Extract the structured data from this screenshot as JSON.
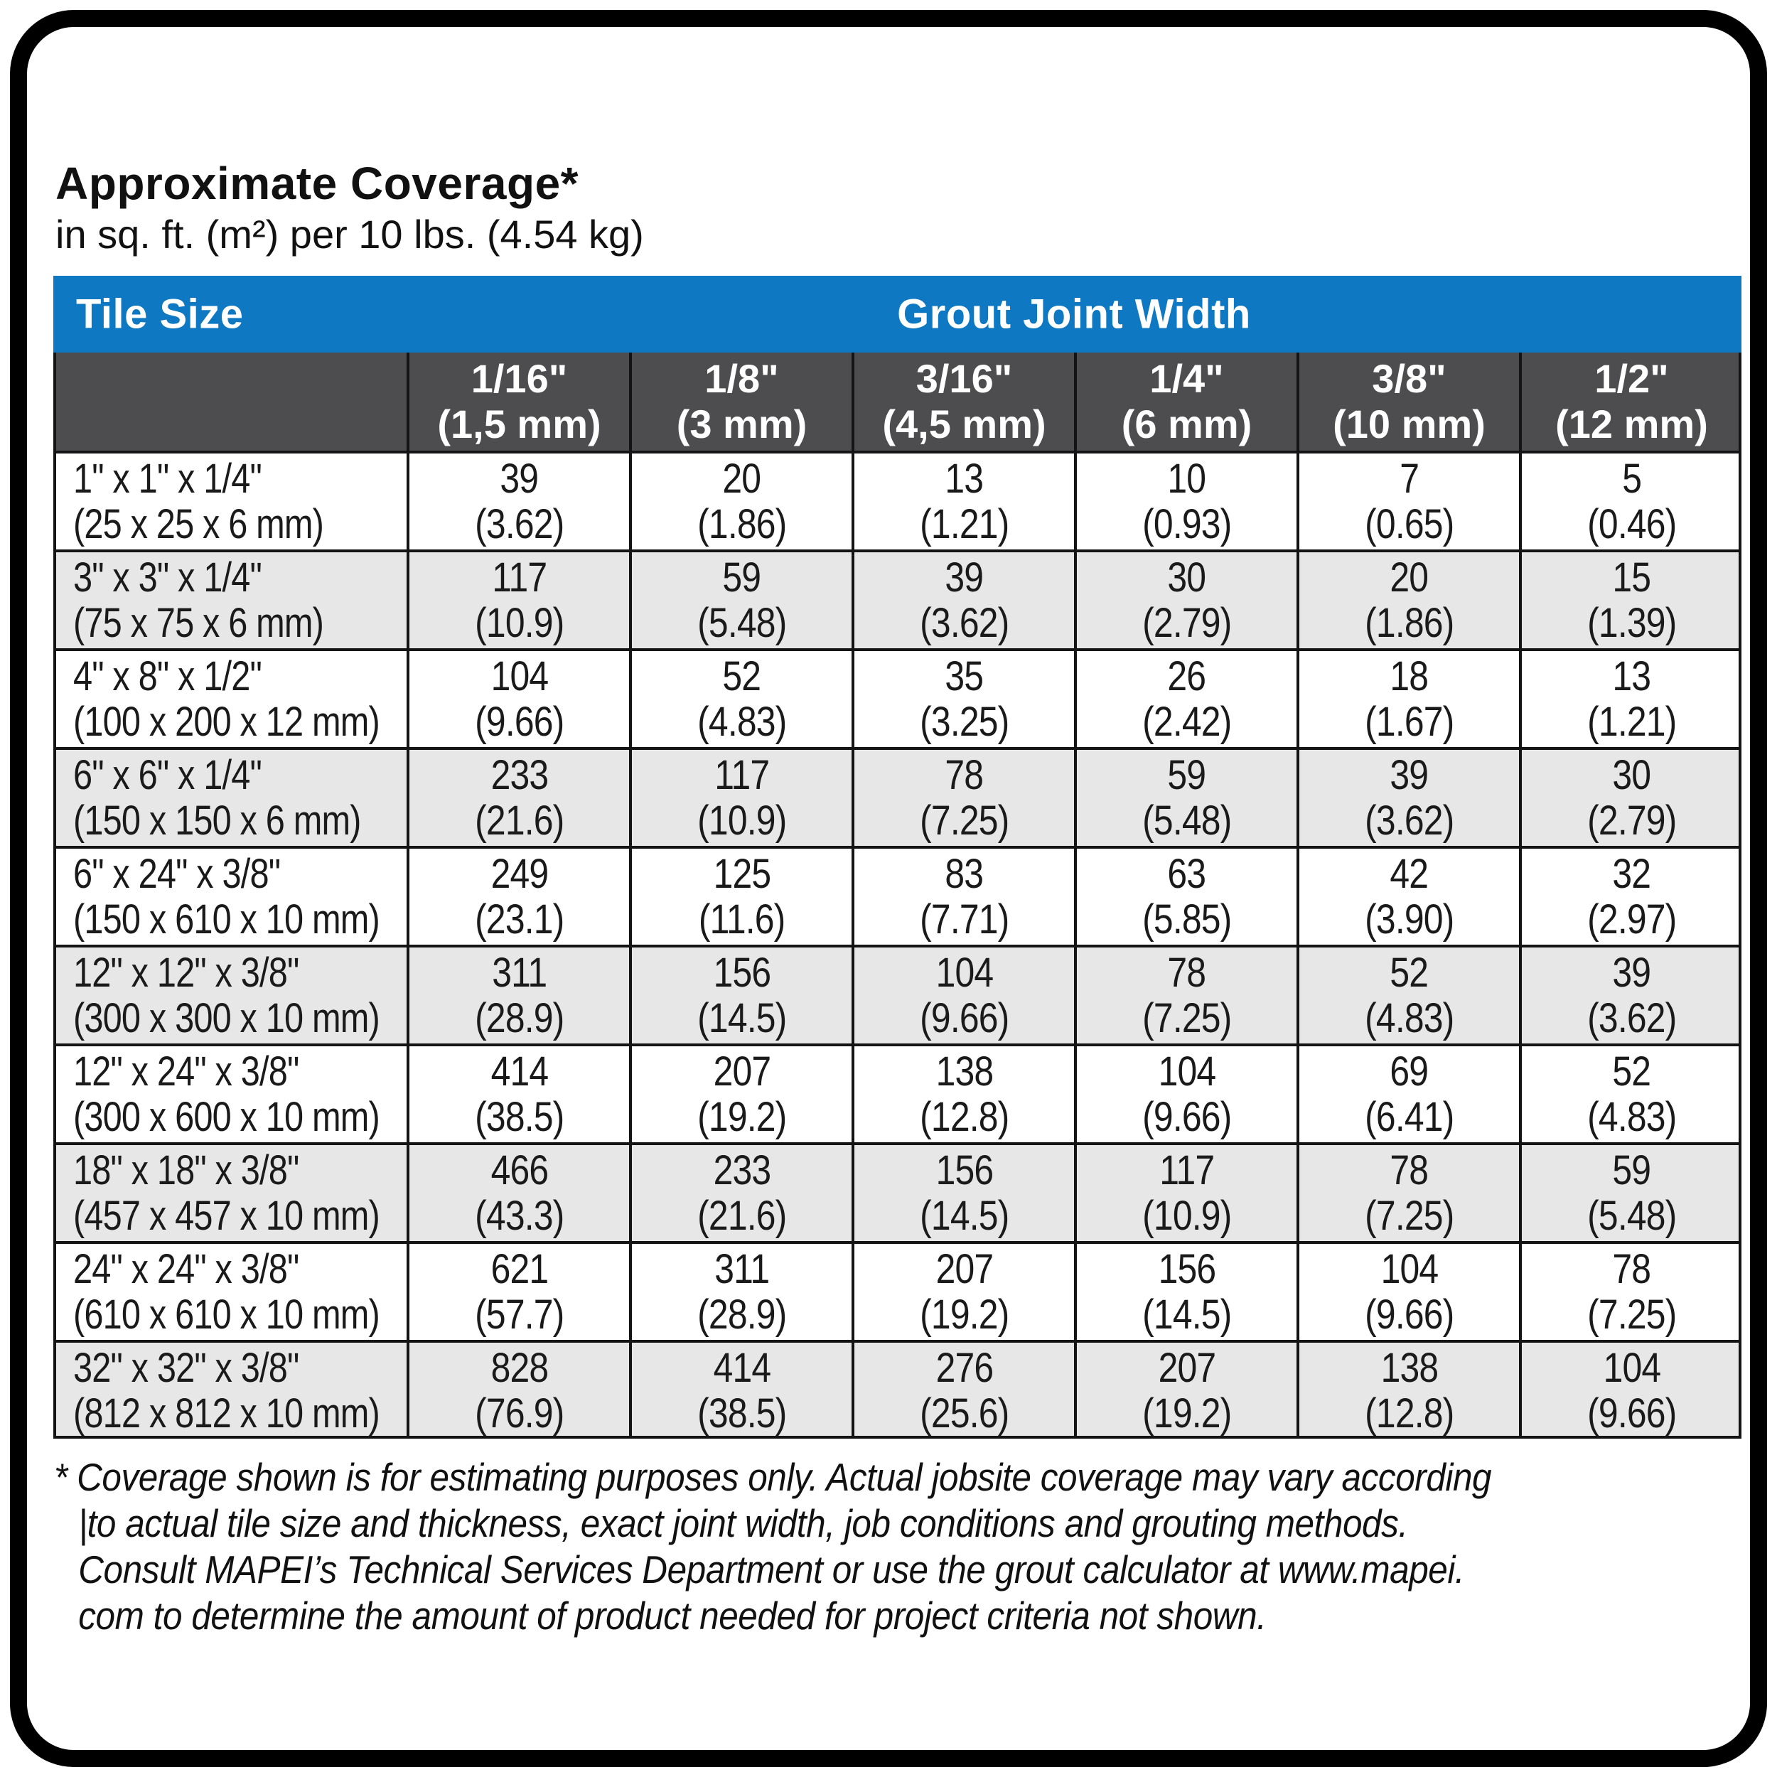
{
  "page": {
    "title": "Approximate Coverage*",
    "subtitle": "in sq. ft. (m²) per 10 lbs. (4.54 kg)"
  },
  "table": {
    "header": {
      "tile_size_label": "Tile Size",
      "grout_joint_width_label": "Grout Joint Width"
    },
    "joint_widths": [
      {
        "size": "1/16\"",
        "metric": "(1,5 mm)"
      },
      {
        "size": "1/8\"",
        "metric": "(3 mm)"
      },
      {
        "size": "3/16\"",
        "metric": "(4,5 mm)"
      },
      {
        "size": "1/4\"",
        "metric": "(6 mm)"
      },
      {
        "size": "3/8\"",
        "metric": "(10 mm)"
      },
      {
        "size": "1/2\"",
        "metric": "(12 mm)"
      }
    ],
    "rows": [
      {
        "tile_size": "1\" x 1\" x 1/4\"",
        "tile_metric": "(25 x 25 x 6 mm)",
        "values": [
          {
            "sqft": "39",
            "m2": "(3.62)"
          },
          {
            "sqft": "20",
            "m2": "(1.86)"
          },
          {
            "sqft": "13",
            "m2": "(1.21)"
          },
          {
            "sqft": "10",
            "m2": "(0.93)"
          },
          {
            "sqft": "7",
            "m2": "(0.65)"
          },
          {
            "sqft": "5",
            "m2": "(0.46)"
          }
        ]
      },
      {
        "tile_size": "3\" x 3\" x 1/4\"",
        "tile_metric": "(75 x 75 x 6 mm)",
        "values": [
          {
            "sqft": "117",
            "m2": "(10.9)"
          },
          {
            "sqft": "59",
            "m2": "(5.48)"
          },
          {
            "sqft": "39",
            "m2": "(3.62)"
          },
          {
            "sqft": "30",
            "m2": "(2.79)"
          },
          {
            "sqft": "20",
            "m2": "(1.86)"
          },
          {
            "sqft": "15",
            "m2": "(1.39)"
          }
        ]
      },
      {
        "tile_size": "4\" x 8\" x 1/2\"",
        "tile_metric": "(100 x 200 x 12 mm)",
        "values": [
          {
            "sqft": "104",
            "m2": "(9.66)"
          },
          {
            "sqft": "52",
            "m2": "(4.83)"
          },
          {
            "sqft": "35",
            "m2": "(3.25)"
          },
          {
            "sqft": "26",
            "m2": "(2.42)"
          },
          {
            "sqft": "18",
            "m2": "(1.67)"
          },
          {
            "sqft": "13",
            "m2": "(1.21)"
          }
        ]
      },
      {
        "tile_size": "6\" x 6\" x 1/4\"",
        "tile_metric": "(150 x 150 x 6 mm)",
        "values": [
          {
            "sqft": "233",
            "m2": "(21.6)"
          },
          {
            "sqft": "117",
            "m2": "(10.9)"
          },
          {
            "sqft": "78",
            "m2": "(7.25)"
          },
          {
            "sqft": "59",
            "m2": "(5.48)"
          },
          {
            "sqft": "39",
            "m2": "(3.62)"
          },
          {
            "sqft": "30",
            "m2": "(2.79)"
          }
        ]
      },
      {
        "tile_size": "6\" x 24\" x 3/8\"",
        "tile_metric": "(150 x 610 x 10 mm)",
        "values": [
          {
            "sqft": "249",
            "m2": "(23.1)"
          },
          {
            "sqft": "125",
            "m2": "(11.6)"
          },
          {
            "sqft": "83",
            "m2": "(7.71)"
          },
          {
            "sqft": "63",
            "m2": "(5.85)"
          },
          {
            "sqft": "42",
            "m2": "(3.90)"
          },
          {
            "sqft": "32",
            "m2": "(2.97)"
          }
        ]
      },
      {
        "tile_size": "12\" x 12\" x 3/8\"",
        "tile_metric": "(300 x 300 x 10 mm)",
        "values": [
          {
            "sqft": "311",
            "m2": "(28.9)"
          },
          {
            "sqft": "156",
            "m2": "(14.5)"
          },
          {
            "sqft": "104",
            "m2": "(9.66)"
          },
          {
            "sqft": "78",
            "m2": "(7.25)"
          },
          {
            "sqft": "52",
            "m2": "(4.83)"
          },
          {
            "sqft": "39",
            "m2": "(3.62)"
          }
        ]
      },
      {
        "tile_size": "12\" x 24\" x 3/8\"",
        "tile_metric": "(300 x 600 x 10 mm)",
        "values": [
          {
            "sqft": "414",
            "m2": "(38.5)"
          },
          {
            "sqft": "207",
            "m2": "(19.2)"
          },
          {
            "sqft": "138",
            "m2": "(12.8)"
          },
          {
            "sqft": "104",
            "m2": "(9.66)"
          },
          {
            "sqft": "69",
            "m2": "(6.41)"
          },
          {
            "sqft": "52",
            "m2": "(4.83)"
          }
        ]
      },
      {
        "tile_size": "18\" x 18\" x 3/8\"",
        "tile_metric": "(457 x 457 x 10 mm)",
        "values": [
          {
            "sqft": "466",
            "m2": "(43.3)"
          },
          {
            "sqft": "233",
            "m2": "(21.6)"
          },
          {
            "sqft": "156",
            "m2": "(14.5)"
          },
          {
            "sqft": "117",
            "m2": "(10.9)"
          },
          {
            "sqft": "78",
            "m2": "(7.25)"
          },
          {
            "sqft": "59",
            "m2": "(5.48)"
          }
        ]
      },
      {
        "tile_size": "24\" x 24\" x 3/8\"",
        "tile_metric": "(610 x 610 x 10 mm)",
        "values": [
          {
            "sqft": "621",
            "m2": "(57.7)"
          },
          {
            "sqft": "311",
            "m2": "(28.9)"
          },
          {
            "sqft": "207",
            "m2": "(19.2)"
          },
          {
            "sqft": "156",
            "m2": "(14.5)"
          },
          {
            "sqft": "104",
            "m2": "(9.66)"
          },
          {
            "sqft": "78",
            "m2": "(7.25)"
          }
        ]
      },
      {
        "tile_size": "32\" x 32\" x 3/8\"",
        "tile_metric": "(812 x 812 x 10 mm)",
        "values": [
          {
            "sqft": "828",
            "m2": "(76.9)"
          },
          {
            "sqft": "414",
            "m2": "(38.5)"
          },
          {
            "sqft": "276",
            "m2": "(25.6)"
          },
          {
            "sqft": "207",
            "m2": "(19.2)"
          },
          {
            "sqft": "138",
            "m2": "(12.8)"
          },
          {
            "sqft": "104",
            "m2": "(9.66)"
          }
        ]
      }
    ]
  },
  "footnote": {
    "lines": [
      "* Coverage shown is for estimating purposes only. Actual jobsite coverage may vary according",
      "|to actual tile size and thickness, exact joint width, job conditions and grouting methods.",
      "Consult MAPEI’s Technical Services Department or use the grout calculator at www.mapei.",
      "com to determine the amount of product needed for project criteria not shown."
    ]
  },
  "colors": {
    "header_blue": "#0E78C3",
    "subheader_gray": "#4D4D4F",
    "row_alt_gray": "#E7E7E8",
    "grid_line": "#141414",
    "text_ink": "#1A1A1A"
  }
}
